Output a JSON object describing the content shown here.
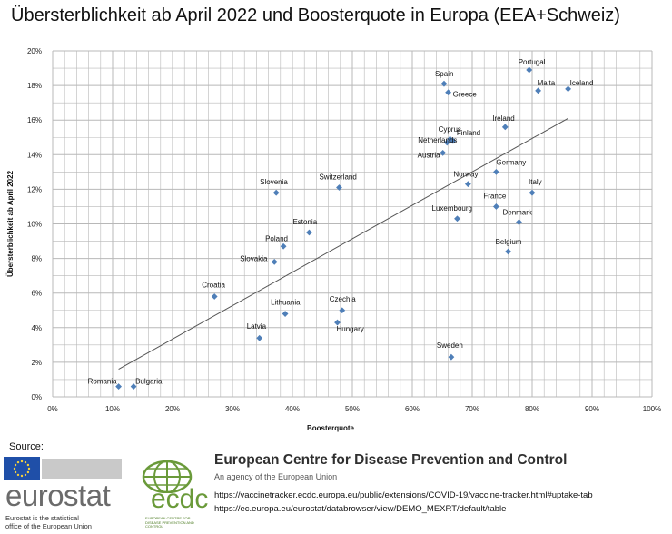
{
  "chart_data": {
    "type": "scatter",
    "title": "Übersterblichkeit ab April 2022  und Boosterquote in Europa (EEA+Schweiz)",
    "xlabel": "Boosterquote",
    "ylabel": "Übersterblichkeit ab April 2022",
    "xlim": [
      0,
      100
    ],
    "ylim": [
      0,
      20
    ],
    "x_ticks": [
      "0%",
      "10%",
      "20%",
      "30%",
      "40%",
      "50%",
      "60%",
      "70%",
      "80%",
      "90%",
      "100%"
    ],
    "y_ticks": [
      "0%",
      "2%",
      "4%",
      "6%",
      "8%",
      "10%",
      "12%",
      "14%",
      "16%",
      "18%",
      "20%"
    ],
    "x_tick_values": [
      0,
      10,
      20,
      30,
      40,
      50,
      60,
      70,
      80,
      90,
      100
    ],
    "y_tick_values": [
      0,
      2,
      4,
      6,
      8,
      10,
      12,
      14,
      16,
      18,
      20
    ],
    "grid": true,
    "marker_color": "#4f7fb8",
    "trendline": {
      "x": [
        11,
        86
      ],
      "y": [
        1.6,
        16.1
      ],
      "color": "#555555"
    },
    "points": [
      {
        "label": "Portugal",
        "x": 79.5,
        "y": 18.9
      },
      {
        "label": "Spain",
        "x": 65.3,
        "y": 18.1
      },
      {
        "label": "Greece",
        "x": 66.0,
        "y": 17.6
      },
      {
        "label": "Malta",
        "x": 81.0,
        "y": 17.7
      },
      {
        "label": "Iceland",
        "x": 86.0,
        "y": 17.8
      },
      {
        "label": "Ireland",
        "x": 75.5,
        "y": 15.6
      },
      {
        "label": "Cyprus",
        "x": 66.3,
        "y": 14.9
      },
      {
        "label": "Netherlands",
        "x": 65.8,
        "y": 14.7
      },
      {
        "label": "Finland",
        "x": 66.8,
        "y": 14.8
      },
      {
        "label": "Austria",
        "x": 65.1,
        "y": 14.1
      },
      {
        "label": "Germany",
        "x": 74.0,
        "y": 13.0
      },
      {
        "label": "Norway",
        "x": 69.3,
        "y": 12.3
      },
      {
        "label": "Switzerland",
        "x": 47.8,
        "y": 12.1
      },
      {
        "label": "Slovenia",
        "x": 37.3,
        "y": 11.8
      },
      {
        "label": "Italy",
        "x": 80.0,
        "y": 11.8
      },
      {
        "label": "France",
        "x": 74.0,
        "y": 11.0
      },
      {
        "label": "Luxembourg",
        "x": 67.5,
        "y": 10.3
      },
      {
        "label": "Denmark",
        "x": 77.8,
        "y": 10.1
      },
      {
        "label": "Estonia",
        "x": 42.8,
        "y": 9.5
      },
      {
        "label": "Poland",
        "x": 38.5,
        "y": 8.7
      },
      {
        "label": "Belgium",
        "x": 76.0,
        "y": 8.4
      },
      {
        "label": "Slovakia",
        "x": 37.0,
        "y": 7.8
      },
      {
        "label": "Croatia",
        "x": 27.0,
        "y": 5.8
      },
      {
        "label": "Czechia",
        "x": 48.3,
        "y": 5.0
      },
      {
        "label": "Lithuania",
        "x": 38.8,
        "y": 4.8
      },
      {
        "label": "Hungary",
        "x": 47.5,
        "y": 4.3
      },
      {
        "label": "Latvia",
        "x": 34.5,
        "y": 3.4
      },
      {
        "label": "Sweden",
        "x": 66.5,
        "y": 2.3
      },
      {
        "label": "Romania",
        "x": 11.0,
        "y": 0.6
      },
      {
        "label": "Bulgaria",
        "x": 13.5,
        "y": 0.6
      }
    ]
  },
  "footer": {
    "source_label": "Source:",
    "eurostat": {
      "wordmark": "eurostat",
      "tagline_1": "Eurostat is the statistical",
      "tagline_2": "office of the European Union"
    },
    "ecdc": {
      "wordmark": "ecdc",
      "small_text": "European Centre for Disease Prevention and Control"
    },
    "org_name": "European Centre for Disease Prevention and Control",
    "org_subtitle": "An agency of the European Union",
    "url_1": "https://vaccinetracker.ecdc.europa.eu/public/extensions/COVID-19/vaccine-tracker.html#uptake-tab",
    "url_2": "https://ec.europa.eu/eurostat/databrowser/view/DEMO_MEXRT/default/table"
  },
  "colors": {
    "grid": "#b8b8b8",
    "eu_blue": "#1f4fa8",
    "eu_star": "#f4d03f",
    "eurostat_grey": "#6b6b6b",
    "ecdc_green": "#6a9a3a"
  }
}
